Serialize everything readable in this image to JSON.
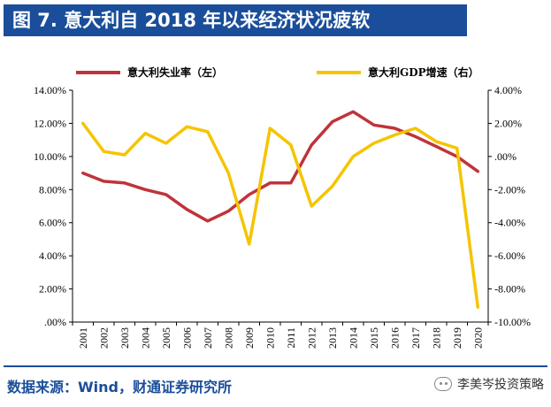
{
  "header": {
    "title": "图 7. 意大利自 2018 年以来经济状况疲软"
  },
  "footer": {
    "source": "数据来源：Wind，财通证券研究所",
    "watermark": "李美岑投资策略"
  },
  "colors": {
    "title_bg": "#1a4e9a",
    "unemployment": "#c0333a",
    "gdp": "#f5c400"
  },
  "chart_data": {
    "type": "line",
    "title": "",
    "categories": [
      "2001",
      "2002",
      "2003",
      "2004",
      "2005",
      "2006",
      "2007",
      "2008",
      "2009",
      "2010",
      "2011",
      "2012",
      "2013",
      "2014",
      "2015",
      "2016",
      "2017",
      "2018",
      "2019",
      "2020"
    ],
    "series": [
      {
        "name": "意大利失业率（左）",
        "axis": "left",
        "color": "#c0333a",
        "values": [
          9.0,
          8.5,
          8.4,
          8.0,
          7.7,
          6.8,
          6.1,
          6.7,
          7.7,
          8.4,
          8.4,
          10.7,
          12.1,
          12.7,
          11.9,
          11.7,
          11.2,
          10.6,
          10.0,
          9.1
        ]
      },
      {
        "name": "意大利GDP增速（右）",
        "axis": "right",
        "color": "#f5c400",
        "values": [
          2.0,
          0.3,
          0.1,
          1.4,
          0.8,
          1.8,
          1.5,
          -1.0,
          -5.3,
          1.7,
          0.7,
          -3.0,
          -1.8,
          0.0,
          0.8,
          1.3,
          1.7,
          0.9,
          0.5,
          -9.1
        ]
      }
    ],
    "y_left": {
      "ylim": [
        0,
        14
      ],
      "ticks": [
        ".00%",
        "2.00%",
        "4.00%",
        "6.00%",
        "8.00%",
        "10.00%",
        "12.00%",
        "14.00%"
      ]
    },
    "y_right": {
      "ylim": [
        -10,
        4
      ],
      "ticks": [
        "-10.00%",
        "-8.00%",
        "-6.00%",
        "-4.00%",
        "-2.00%",
        ".00%",
        "2.00%",
        "4.00%"
      ]
    },
    "legend": "top"
  }
}
